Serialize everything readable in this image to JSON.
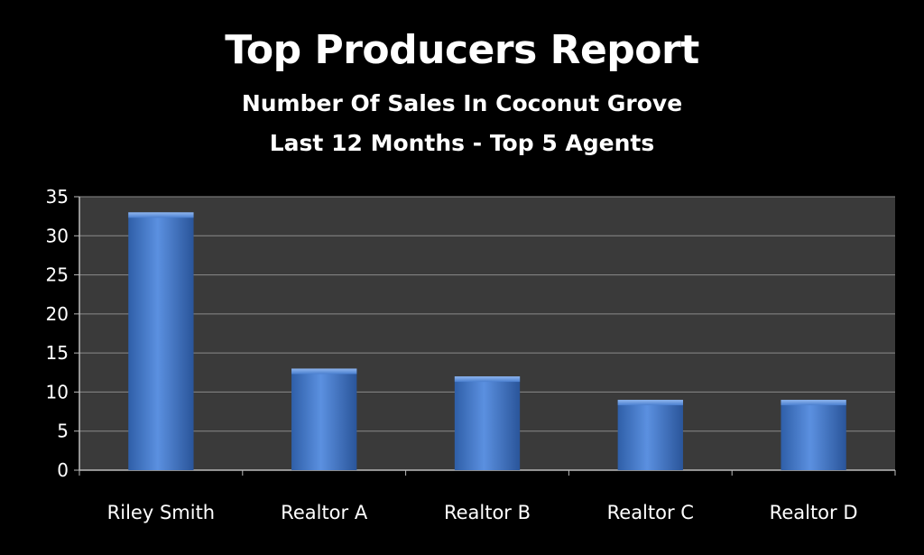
{
  "chart_data": {
    "type": "bar",
    "title": "Top Producers Report",
    "subtitle_line1": "Number Of Sales In Coconut Grove",
    "subtitle_line2": "Last 12 Months - Top 5 Agents",
    "categories": [
      "Riley Smith",
      "Realtor A",
      "Realtor B",
      "Realtor C",
      "Realtor D"
    ],
    "values": [
      33,
      13,
      12,
      9,
      9
    ],
    "ylim": [
      0,
      35
    ],
    "yticks": [
      0,
      5,
      10,
      15,
      20,
      25,
      30,
      35
    ],
    "grid": true,
    "legend": "none",
    "bar_color": "#4a7fcf",
    "plot_background": "#3a3a3a",
    "page_background": "#000000",
    "text_color": "#ffffff"
  }
}
